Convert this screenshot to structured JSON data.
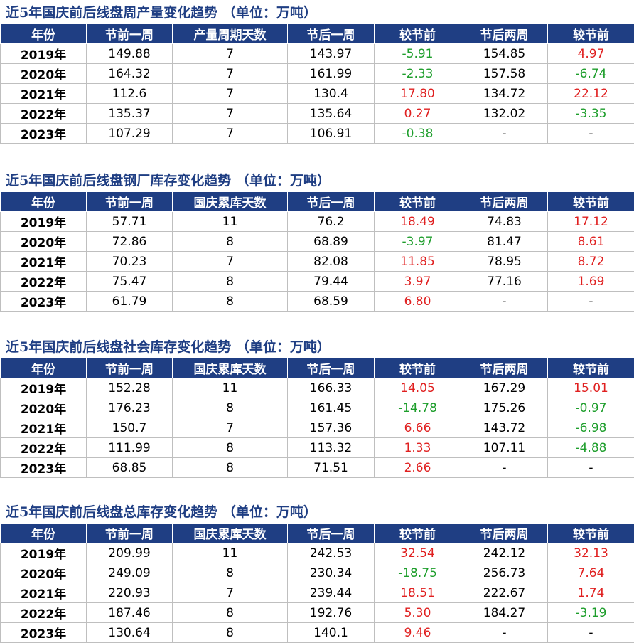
{
  "tables": [
    {
      "title": "近5年国庆前后线盘周产量变化趋势 （单位：万吨）",
      "headers": [
        "年份",
        "节前一周",
        "产量周期天数",
        "节后一周",
        "较节前",
        "节后两周",
        "较节前"
      ],
      "rows": [
        [
          "2019年",
          "149.88",
          "7",
          "143.97",
          "-5.91",
          "154.85",
          "4.97"
        ],
        [
          "2020年",
          "164.32",
          "7",
          "161.99",
          "-2.33",
          "157.58",
          "-6.74"
        ],
        [
          "2021年",
          "112.6",
          "7",
          "130.4",
          "17.80",
          "134.72",
          "22.12"
        ],
        [
          "2022年",
          "135.37",
          "7",
          "135.64",
          "0.27",
          "132.02",
          "-3.35"
        ],
        [
          "2023年",
          "107.29",
          "7",
          "106.91",
          "-0.38",
          "-",
          "-"
        ]
      ]
    },
    {
      "title": "近5年国庆前后线盘钢厂库存变化趋势 （单位：万吨）",
      "headers": [
        "年份",
        "节前一周",
        "国庆累库天数",
        "节后一周",
        "较节前",
        "节后两周",
        "较节前"
      ],
      "rows": [
        [
          "2019年",
          "57.71",
          "11",
          "76.2",
          "18.49",
          "74.83",
          "17.12"
        ],
        [
          "2020年",
          "72.86",
          "8",
          "68.89",
          "-3.97",
          "81.47",
          "8.61"
        ],
        [
          "2021年",
          "70.23",
          "7",
          "82.08",
          "11.85",
          "78.95",
          "8.72"
        ],
        [
          "2022年",
          "75.47",
          "8",
          "79.44",
          "3.97",
          "77.16",
          "1.69"
        ],
        [
          "2023年",
          "61.79",
          "8",
          "68.59",
          "6.80",
          "-",
          "-"
        ]
      ]
    },
    {
      "title": "近5年国庆前后线盘社会库存变化趋势 （单位：万吨）",
      "headers": [
        "年份",
        "节前一周",
        "国庆累库天数",
        "节后一周",
        "较节前",
        "节后两周",
        "较节前"
      ],
      "rows": [
        [
          "2019年",
          "152.28",
          "11",
          "166.33",
          "14.05",
          "167.29",
          "15.01"
        ],
        [
          "2020年",
          "176.23",
          "8",
          "161.45",
          "-14.78",
          "175.26",
          "-0.97"
        ],
        [
          "2021年",
          "150.7",
          "7",
          "157.36",
          "6.66",
          "143.72",
          "-6.98"
        ],
        [
          "2022年",
          "111.99",
          "8",
          "113.32",
          "1.33",
          "107.11",
          "-4.88"
        ],
        [
          "2023年",
          "68.85",
          "8",
          "71.51",
          "2.66",
          "-",
          "-"
        ]
      ]
    },
    {
      "title": "近5年国庆前后线盘总库存变化趋势 （单位：万吨）",
      "headers": [
        "年份",
        "节前一周",
        "国庆累库天数",
        "节后一周",
        "较节前",
        "节后两周",
        "较节前"
      ],
      "rows": [
        [
          "2019年",
          "209.99",
          "11",
          "242.53",
          "32.54",
          "242.12",
          "32.13"
        ],
        [
          "2020年",
          "249.09",
          "8",
          "230.34",
          "-18.75",
          "256.73",
          "7.64"
        ],
        [
          "2021年",
          "220.93",
          "7",
          "239.44",
          "18.51",
          "222.67",
          "1.74"
        ],
        [
          "2022年",
          "187.46",
          "8",
          "192.76",
          "5.30",
          "184.27",
          "-3.19"
        ],
        [
          "2023年",
          "130.64",
          "8",
          "140.1",
          "9.46",
          "-",
          "-"
        ]
      ]
    }
  ],
  "colors": {
    "header_bg": "#1f3e83",
    "title": "#1f3e83",
    "positive": "#e02020",
    "negative": "#1e9e2c"
  }
}
